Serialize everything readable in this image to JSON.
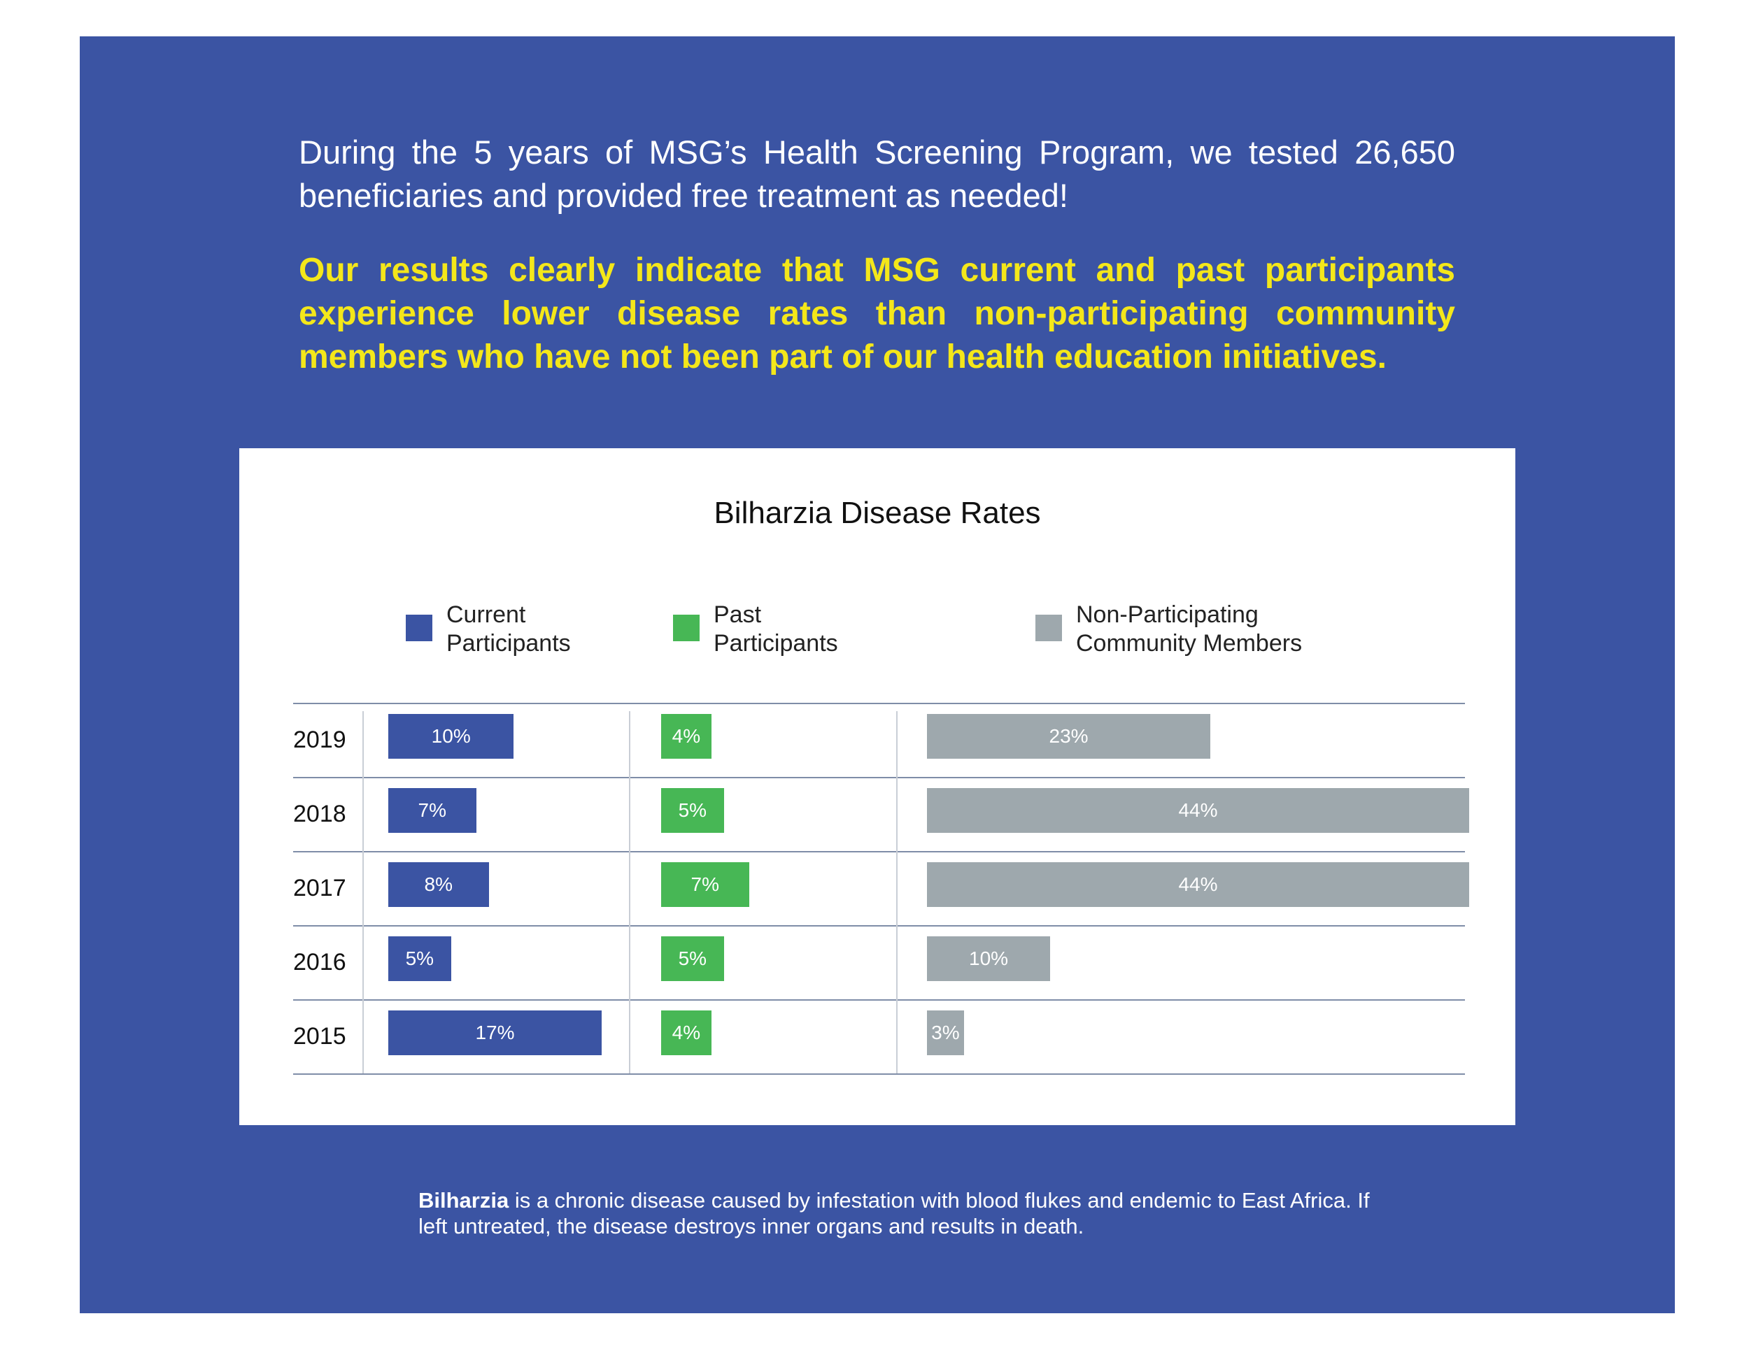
{
  "intro": {
    "line": "During the 5 years of MSG’s Health Screening Program, we tested 26,650 beneficiaries and provided free treatment as needed!",
    "highlight": "Our results clearly indicate that MSG current and past participants experience lower disease rates than non-participating community members who have not been part of our health education initiatives."
  },
  "footnote": {
    "term": "Bilharzia",
    "text": " is a chronic disease caused by infestation with blood flukes and endemic to East Africa. If left untreated, the disease destroys inner organs and results in death."
  },
  "colors": {
    "panel": "#3b54a3",
    "highlight": "#f4e71a",
    "current": "#3b54a3",
    "past": "#47b755",
    "non": "#9ea8ad"
  },
  "chart_data": {
    "type": "bar",
    "orientation": "horizontal",
    "title": "Bilharzia Disease Rates",
    "categories": [
      "2019",
      "2018",
      "2017",
      "2016",
      "2015"
    ],
    "unit": "%",
    "legend": [
      "Current Participants",
      "Past Participants",
      "Non-Participating Community Members"
    ],
    "legend_position": "top",
    "series": [
      {
        "name": "Current Participants",
        "legend_lines": [
          "Current",
          "Participants"
        ],
        "values": [
          10,
          7,
          8,
          5,
          17
        ],
        "labels": [
          "10%",
          "7%",
          "8%",
          "5%",
          "17%"
        ],
        "color": "#3b54a3"
      },
      {
        "name": "Past Participants",
        "legend_lines": [
          "Past",
          "Participants"
        ],
        "values": [
          4,
          5,
          7,
          5,
          4
        ],
        "labels": [
          "4%",
          "5%",
          "7%",
          "5%",
          "4%"
        ],
        "color": "#47b755"
      },
      {
        "name": "Non-Participating Community Members",
        "legend_lines": [
          "Non-Participating",
          "Community Members"
        ],
        "values": [
          23,
          44,
          44,
          10,
          3
        ],
        "labels": [
          "23%",
          "44%",
          "44%",
          "10%",
          "3%"
        ],
        "color": "#9ea8ad"
      }
    ]
  }
}
